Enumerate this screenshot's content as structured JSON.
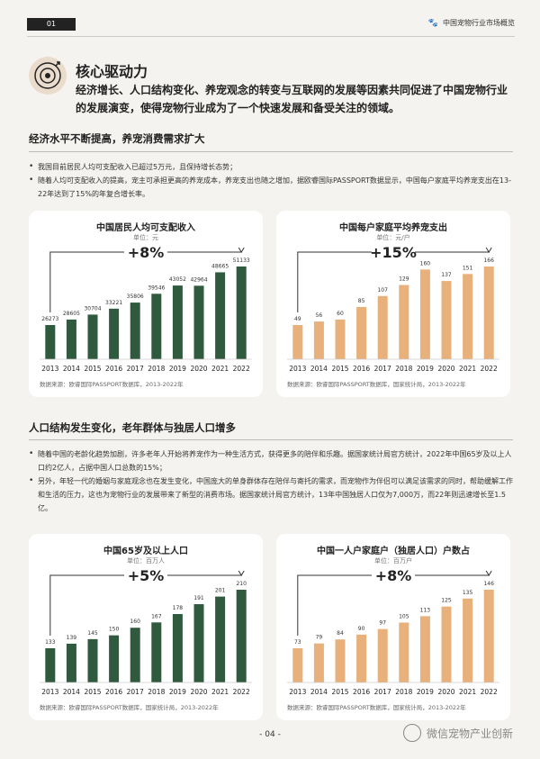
{
  "header": {
    "page_tag": "01",
    "title": "中国宠物行业市场概览"
  },
  "heading": "核心驱动力",
  "lead": "经济增长、人口结构变化、养宠观念的转变与互联网的发展等因素共同促进了中国宠物行业的发展演变，使得宠物行业成为了一个快速发展和备受关注的领域。",
  "section1": {
    "title": "经济水平不断提高，养宠消费需求扩大",
    "bullets": [
      "我国目前居民人均可支配收入已超过5万元，且保持增长态势；",
      "随着人均可支配收入的提高，宠主可承担更高的养宠成本，养宠支出也随之增加，据欧睿国际PASSPORT数据显示，中国每户家庭平均养宠支出在13-22年达到了15%的年复合增长率。"
    ]
  },
  "section2": {
    "title": "人口结构发生变化，老年群体与独居人口增多",
    "bullets": [
      "随着中国的老龄化趋势加剧，许多老年人开始将养宠作为一种生活方式，获得更多的陪伴和乐趣。据国家统计局官方统计，2022年中国65岁及以上人口约2亿人，占据中国人口总数的15%；",
      "另外，年轻一代的婚姻与家庭观念也在发生变化，中国庞大的单身群体存在陪伴与寄托的需求，而宠物作为伴侣可以满足该需求的同时，帮助缓解工作和生活的压力，这也为宠物行业的发展带来了新型的消费市场。据国家统计局官方统计，13年中国独居人口仅为7,000万，而22年则迅速增长至1.5亿。"
    ]
  },
  "colors": {
    "green": "#2f5a3e",
    "orange": "#e8b07a"
  },
  "chart_data": [
    {
      "type": "bar",
      "title": "中国居民人均可支配收入",
      "unit": "单位：元",
      "growth": "+8%",
      "source": "数据来源：欧睿国际PASSPORT数据库，2013-2022年",
      "categories": [
        "2013",
        "2014",
        "2015",
        "2016",
        "2017",
        "2018",
        "2019",
        "2020",
        "2021",
        "2022"
      ],
      "values": [
        26273,
        28605,
        30704,
        33221,
        35806,
        39546,
        43052,
        42964,
        48665,
        51133
      ],
      "color": "#2f5a3e"
    },
    {
      "type": "bar",
      "title": "中国每户家庭平均养宠支出",
      "unit": "单位：元/户",
      "growth": "+15%",
      "source": "数据来源：欧睿国际PASSPORT数据库，国家统计局，2013-2022年",
      "categories": [
        "2013",
        "2014",
        "2015",
        "2016",
        "2017",
        "2018",
        "2019",
        "2020",
        "2021",
        "2022"
      ],
      "values": [
        49,
        56,
        60,
        85,
        107,
        129,
        160,
        137,
        151,
        166
      ],
      "color": "#e8b07a"
    },
    {
      "type": "bar",
      "title": "中国65岁及以上人口",
      "unit": "单位：百万人",
      "growth": "+5%",
      "source": "数据来源：欧睿国际PASSPORT数据库，国家统计局，2013-2022年",
      "categories": [
        "2013",
        "2014",
        "2015",
        "2016",
        "2017",
        "2018",
        "2019",
        "2020",
        "2021",
        "2022"
      ],
      "values": [
        133,
        139,
        145,
        150,
        160,
        167,
        178,
        191,
        201,
        210
      ],
      "color": "#2f5a3e"
    },
    {
      "type": "bar",
      "title": "中国一人户家庭户（独居人口）户数占",
      "unit": "单位：百万户",
      "growth": "+8%",
      "source": "数据来源：欧睿国际PASSPORT数据库，国家统计局，2013-2022年",
      "categories": [
        "2013",
        "2014",
        "2015",
        "2016",
        "2017",
        "2018",
        "2019",
        "2020",
        "2021",
        "2022"
      ],
      "values": [
        73,
        79,
        84,
        90,
        97,
        105,
        113,
        125,
        135,
        146
      ],
      "color": "#e8b07a"
    }
  ],
  "footer": {
    "page": "- 04 -",
    "watermark": "微信宠物产业创新"
  }
}
